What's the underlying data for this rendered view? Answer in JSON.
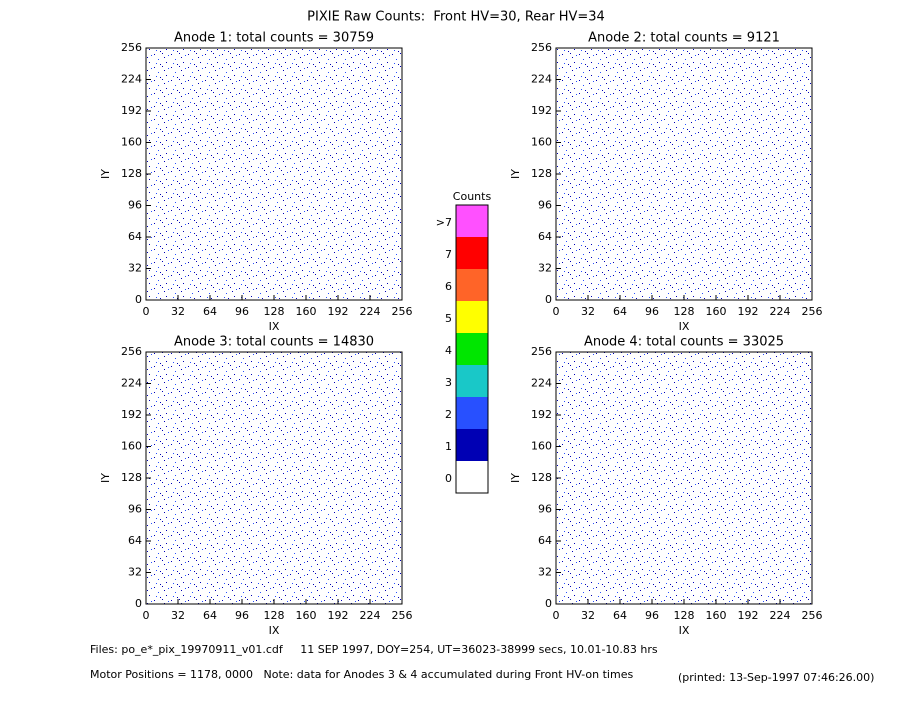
{
  "title": "PIXIE Raw Counts:  Front HV=30, Rear HV=34",
  "chart_data": [
    {
      "type": "heatmap",
      "title": "Anode 1: total counts = 30759",
      "x_label": "IX",
      "y_label": "IY",
      "xlim": [
        0,
        256
      ],
      "ylim": [
        0,
        256
      ],
      "xticks": [
        0,
        32,
        64,
        96,
        128,
        160,
        192,
        224,
        256
      ],
      "yticks": [
        0,
        32,
        64,
        96,
        128,
        160,
        192,
        224,
        256
      ]
    },
    {
      "type": "heatmap",
      "title": "Anode 2: total counts = 9121",
      "x_label": "IX",
      "y_label": "IY",
      "xlim": [
        0,
        256
      ],
      "ylim": [
        0,
        256
      ],
      "xticks": [
        0,
        32,
        64,
        96,
        128,
        160,
        192,
        224,
        256
      ],
      "yticks": [
        0,
        32,
        64,
        96,
        128,
        160,
        192,
        224,
        256
      ]
    },
    {
      "type": "heatmap",
      "title": "Anode 3: total counts = 14830",
      "x_label": "IX",
      "y_label": "IY",
      "xlim": [
        0,
        256
      ],
      "ylim": [
        0,
        256
      ],
      "xticks": [
        0,
        32,
        64,
        96,
        128,
        160,
        192,
        224,
        256
      ],
      "yticks": [
        0,
        32,
        64,
        96,
        128,
        160,
        192,
        224,
        256
      ]
    },
    {
      "type": "heatmap",
      "title": "Anode 4: total counts = 33025",
      "x_label": "IX",
      "y_label": "IY",
      "xlim": [
        0,
        256
      ],
      "ylim": [
        0,
        256
      ],
      "xticks": [
        0,
        32,
        64,
        96,
        128,
        160,
        192,
        224,
        256
      ],
      "yticks": [
        0,
        32,
        64,
        96,
        128,
        160,
        192,
        224,
        256
      ]
    }
  ],
  "colorbar": {
    "title": "Counts",
    "levels": [
      {
        "label": "0",
        "color": "#ffffff"
      },
      {
        "label": "1",
        "color": "#0000b4"
      },
      {
        "label": "2",
        "color": "#2850ff"
      },
      {
        "label": "3",
        "color": "#19c8c8"
      },
      {
        "label": "4",
        "color": "#00e600"
      },
      {
        "label": "5",
        "color": "#ffff00"
      },
      {
        "label": "6",
        "color": "#ff6428"
      },
      {
        "label": "7",
        "color": "#ff0000"
      },
      {
        "label": ">7",
        "color": "#ff50ff"
      }
    ]
  },
  "footer": {
    "files": "Files: po_e*_pix_19970911_v01.cdf     11 SEP 1997, DOY=254, UT=36023-38999 secs, 10.01-10.83 hrs",
    "motor": "Motor Positions = 1178, 0000   Note: data for Anodes 3 & 4 accumulated during Front HV-on times",
    "printed": "(printed: 13-Sep-1997 07:46:26.00)"
  }
}
